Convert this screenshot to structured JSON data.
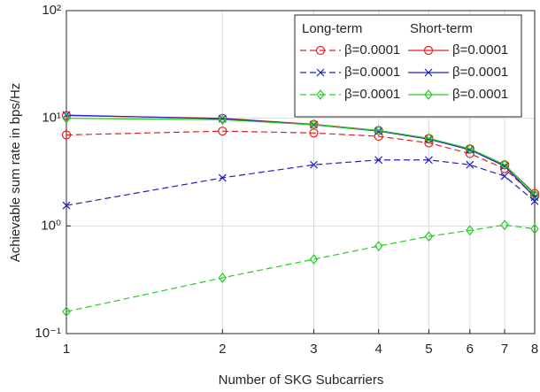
{
  "chart_data": {
    "type": "line",
    "xlabel": "Number of SKG Subcarriers",
    "ylabel": "Achievable sum rate in bps/Hz",
    "x": [
      1,
      2,
      3,
      4,
      5,
      6,
      7,
      8
    ],
    "xlim": [
      1,
      8
    ],
    "xticks": [
      1,
      2,
      3,
      4,
      5,
      6,
      7,
      8
    ],
    "xscale": "log",
    "ylim": [
      0.1,
      100
    ],
    "yscale": "log",
    "yticks": [
      {
        "value": 0.1,
        "label": "10⁻¹"
      },
      {
        "value": 1,
        "label": "10⁰"
      },
      {
        "value": 10,
        "label": "10¹"
      },
      {
        "value": 100,
        "label": "10²"
      }
    ],
    "grid": true,
    "legend_position": "upper right",
    "legend_columns": [
      "Long-term",
      "Short-term"
    ],
    "series": [
      {
        "name": "β=0.0001",
        "color": "#e02020",
        "linestyle": "dashed",
        "marker": "circle",
        "legend_column": 0,
        "values": [
          7.0,
          7.6,
          7.3,
          6.8,
          5.9,
          4.7,
          3.4,
          1.9
        ]
      },
      {
        "name": "β=0.0001",
        "color": "#2020c0",
        "linestyle": "dashed",
        "marker": "x",
        "legend_column": 0,
        "values": [
          1.55,
          2.8,
          3.7,
          4.1,
          4.1,
          3.7,
          2.9,
          1.7
        ]
      },
      {
        "name": "β=0.0001",
        "color": "#20d020",
        "linestyle": "dashed",
        "marker": "diamond",
        "legend_column": 0,
        "values": [
          0.16,
          0.33,
          0.49,
          0.65,
          0.8,
          0.91,
          1.02,
          0.94
        ]
      },
      {
        "name": "β=0.0001",
        "color": "#e02020",
        "linestyle": "solid",
        "marker": "circle",
        "legend_column": 1,
        "values": [
          10.6,
          10,
          8.8,
          7.7,
          6.5,
          5.2,
          3.7,
          2.0
        ]
      },
      {
        "name": "β=0.0001",
        "color": "#2020c0",
        "linestyle": "solid",
        "marker": "x",
        "legend_column": 1,
        "values": [
          10.7,
          9.9,
          8.7,
          7.6,
          6.4,
          5.1,
          3.6,
          1.85
        ]
      },
      {
        "name": "β=0.0001",
        "color": "#20d020",
        "linestyle": "solid",
        "marker": "diamond",
        "legend_column": 1,
        "values": [
          10.0,
          9.7,
          8.7,
          7.7,
          6.5,
          5.2,
          3.7,
          1.95
        ]
      }
    ]
  }
}
